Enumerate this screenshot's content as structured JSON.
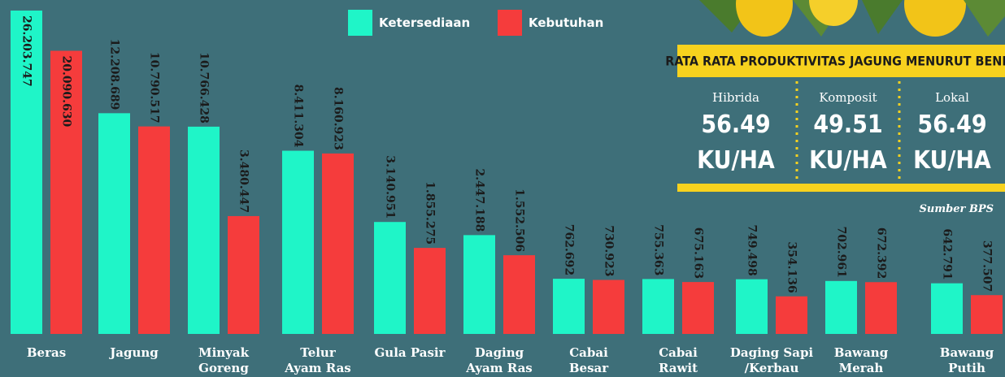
{
  "chart_data": {
    "type": "bar",
    "scale": "sqrt",
    "categories": [
      [
        "Beras"
      ],
      [
        "Jagung"
      ],
      [
        "Minyak",
        "Goreng"
      ],
      [
        "Telur",
        "Ayam Ras"
      ],
      [
        "Gula Pasir"
      ],
      [
        "Daging",
        "Ayam Ras"
      ],
      [
        "Cabai",
        "Besar"
      ],
      [
        "Cabai",
        "Rawit"
      ],
      [
        "Daging Sapi",
        "/Kerbau"
      ],
      [
        "Bawang",
        "Merah"
      ],
      [
        "Bawang",
        "Putih"
      ]
    ],
    "series": [
      {
        "name": "Ketersediaan",
        "color": "#1ff5c8",
        "values": [
          26203747,
          12208689,
          10766428,
          8411304,
          3140951,
          2447188,
          762692,
          755363,
          749498,
          702961,
          642791
        ],
        "value_labels": [
          "26.203.747",
          "12.208.689",
          "10.766.428",
          "8.411.304",
          "3.140.951",
          "2.447.188",
          "762.692",
          "755.363",
          "749.498",
          "702.961",
          "642.791"
        ]
      },
      {
        "name": "Kebutuhan",
        "color": "#f53c3c",
        "values": [
          20090630,
          10790517,
          3480447,
          8160923,
          1855275,
          1552506,
          730923,
          675163,
          354136,
          672392,
          377507
        ],
        "value_labels": [
          "20.090.630",
          "10.790.517",
          "3.480.447",
          "8.160.923",
          "1.855.275",
          "1.552.506",
          "730.923",
          "675.163",
          "354.136",
          "672.392",
          "377.507"
        ]
      }
    ]
  },
  "panel": {
    "title": "RATA RATA PRODUKTIVITAS JAGUNG MENURUT BENIH",
    "items": [
      {
        "label": "Hibrida",
        "value": "56.49",
        "unit": "KU/HA"
      },
      {
        "label": "Komposit",
        "value": "49.51",
        "unit": "KU/HA"
      },
      {
        "label": "Lokal",
        "value": "56.49",
        "unit": "KU/HA"
      }
    ],
    "source": "Sumber BPS"
  }
}
